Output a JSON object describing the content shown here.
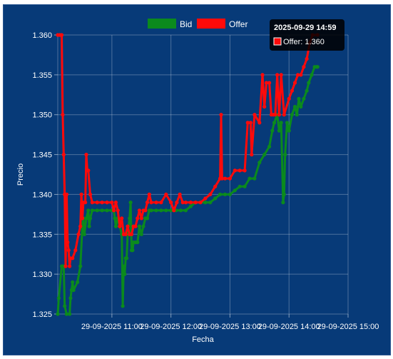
{
  "chart_data": {
    "type": "line",
    "xlabel": "Fecha",
    "ylabel": "Precio",
    "ylim": [
      1.325,
      1.36
    ],
    "yticks": [
      "1.325",
      "1.330",
      "1.335",
      "1.340",
      "1.345",
      "1.350",
      "1.355",
      "1.360"
    ],
    "xticks": [
      "29-09-2025 11:00",
      "29-09-2025 12:00",
      "29-09-2025 13:00",
      "29-09-2025 14:00",
      "29-09-2025 15:00"
    ],
    "grid": true,
    "legend_position": "top",
    "x_start": "2025-09-29 10:05",
    "x_end": "2025-09-29 15:00",
    "series": [
      {
        "name": "Bid",
        "color": "#0b8a1d",
        "points": [
          [
            "2025-09-29 10:05",
            1.325
          ],
          [
            "2025-09-29 10:06",
            1.327
          ],
          [
            "2025-09-29 10:09",
            1.331
          ],
          [
            "2025-09-29 10:11",
            1.331
          ],
          [
            "2025-09-29 10:12",
            1.326
          ],
          [
            "2025-09-29 10:14",
            1.325
          ],
          [
            "2025-09-29 10:17",
            1.325
          ],
          [
            "2025-09-29 10:18",
            1.327
          ],
          [
            "2025-09-29 10:19",
            1.328
          ],
          [
            "2025-09-29 10:20",
            1.329
          ],
          [
            "2025-09-29 10:21",
            1.328
          ],
          [
            "2025-09-29 10:25",
            1.329
          ],
          [
            "2025-09-29 10:28",
            1.331
          ],
          [
            "2025-09-29 10:30",
            1.336
          ],
          [
            "2025-09-29 10:31",
            1.337
          ],
          [
            "2025-09-29 10:32",
            1.335
          ],
          [
            "2025-09-29 10:34",
            1.337
          ],
          [
            "2025-09-29 10:36",
            1.338
          ],
          [
            "2025-09-29 10:37",
            1.336
          ],
          [
            "2025-09-29 10:38",
            1.337
          ],
          [
            "2025-09-29 10:40",
            1.338
          ],
          [
            "2025-09-29 10:45",
            1.338
          ],
          [
            "2025-09-29 10:50",
            1.338
          ],
          [
            "2025-09-29 10:55",
            1.338
          ],
          [
            "2025-09-29 11:00",
            1.338
          ],
          [
            "2025-09-29 11:02",
            1.338
          ],
          [
            "2025-09-29 11:03",
            1.337
          ],
          [
            "2025-09-29 11:04",
            1.336
          ],
          [
            "2025-09-29 11:06",
            1.337
          ],
          [
            "2025-09-29 11:08",
            1.336
          ],
          [
            "2025-09-29 11:10",
            1.335
          ],
          [
            "2025-09-29 11:11",
            1.326
          ],
          [
            "2025-09-29 11:12",
            1.331
          ],
          [
            "2025-09-29 11:13",
            1.33
          ],
          [
            "2025-09-29 11:14",
            1.332
          ],
          [
            "2025-09-29 11:15",
            1.332
          ],
          [
            "2025-09-29 11:16",
            1.335
          ],
          [
            "2025-09-29 11:18",
            1.337
          ],
          [
            "2025-09-29 11:19",
            1.339
          ],
          [
            "2025-09-29 11:20",
            1.333
          ],
          [
            "2025-09-29 11:21",
            1.333
          ],
          [
            "2025-09-29 11:22",
            1.334
          ],
          [
            "2025-09-29 11:24",
            1.334
          ],
          [
            "2025-09-29 11:26",
            1.334
          ],
          [
            "2025-09-29 11:28",
            1.336
          ],
          [
            "2025-09-29 11:30",
            1.335
          ],
          [
            "2025-09-29 11:32",
            1.336
          ],
          [
            "2025-09-29 11:34",
            1.337
          ],
          [
            "2025-09-29 11:36",
            1.337
          ],
          [
            "2025-09-29 11:38",
            1.338
          ],
          [
            "2025-09-29 11:40",
            1.338
          ],
          [
            "2025-09-29 11:45",
            1.338
          ],
          [
            "2025-09-29 11:50",
            1.338
          ],
          [
            "2025-09-29 11:55",
            1.338
          ],
          [
            "2025-09-29 12:00",
            1.338
          ],
          [
            "2025-09-29 12:05",
            1.338
          ],
          [
            "2025-09-29 12:10",
            1.338
          ],
          [
            "2025-09-29 12:15",
            1.338
          ],
          [
            "2025-09-29 12:20",
            1.3385
          ],
          [
            "2025-09-29 12:25",
            1.339
          ],
          [
            "2025-09-29 12:30",
            1.339
          ],
          [
            "2025-09-29 12:35",
            1.339
          ],
          [
            "2025-09-29 12:40",
            1.339
          ],
          [
            "2025-09-29 12:45",
            1.3395
          ],
          [
            "2025-09-29 12:50",
            1.34
          ],
          [
            "2025-09-29 12:55",
            1.34
          ],
          [
            "2025-09-29 13:00",
            1.34
          ],
          [
            "2025-09-29 13:05",
            1.3405
          ],
          [
            "2025-09-29 13:10",
            1.341
          ],
          [
            "2025-09-29 13:15",
            1.341
          ],
          [
            "2025-09-29 13:20",
            1.342
          ],
          [
            "2025-09-29 13:25",
            1.342
          ],
          [
            "2025-09-29 13:30",
            1.344
          ],
          [
            "2025-09-29 13:35",
            1.345
          ],
          [
            "2025-09-29 13:40",
            1.346
          ],
          [
            "2025-09-29 13:43",
            1.348
          ],
          [
            "2025-09-29 13:45",
            1.349
          ],
          [
            "2025-09-29 13:48",
            1.35
          ],
          [
            "2025-09-29 13:50",
            1.348
          ],
          [
            "2025-09-29 13:52",
            1.349
          ],
          [
            "2025-09-29 13:54",
            1.339
          ],
          [
            "2025-09-29 13:55",
            1.34
          ],
          [
            "2025-09-29 13:56",
            1.345
          ],
          [
            "2025-09-29 13:58",
            1.349
          ],
          [
            "2025-09-29 14:00",
            1.348
          ],
          [
            "2025-09-29 14:03",
            1.35
          ],
          [
            "2025-09-29 14:06",
            1.351
          ],
          [
            "2025-09-29 14:08",
            1.35
          ],
          [
            "2025-09-29 14:10",
            1.352
          ],
          [
            "2025-09-29 14:12",
            1.351
          ],
          [
            "2025-09-29 14:15",
            1.352
          ],
          [
            "2025-09-29 14:18",
            1.353
          ],
          [
            "2025-09-29 14:20",
            1.354
          ],
          [
            "2025-09-29 14:23",
            1.355
          ],
          [
            "2025-09-29 14:26",
            1.356
          ],
          [
            "2025-09-29 14:28",
            1.356
          ],
          [
            "2025-09-29 14:29",
            1.356
          ]
        ]
      },
      {
        "name": "Offer",
        "color": "#ff0a0a",
        "points": [
          [
            "2025-09-29 10:05",
            1.36
          ],
          [
            "2025-09-29 10:07",
            1.36
          ],
          [
            "2025-09-29 10:09",
            1.36
          ],
          [
            "2025-09-29 10:10",
            1.35
          ],
          [
            "2025-09-29 10:11",
            1.345
          ],
          [
            "2025-09-29 10:12",
            1.34
          ],
          [
            "2025-09-29 10:13",
            1.331
          ],
          [
            "2025-09-29 10:14",
            1.34
          ],
          [
            "2025-09-29 10:15",
            1.334
          ],
          [
            "2025-09-29 10:16",
            1.333
          ],
          [
            "2025-09-29 10:17",
            1.331
          ],
          [
            "2025-09-29 10:18",
            1.332
          ],
          [
            "2025-09-29 10:20",
            1.332
          ],
          [
            "2025-09-29 10:23",
            1.333
          ],
          [
            "2025-09-29 10:26",
            1.335
          ],
          [
            "2025-09-29 10:28",
            1.336
          ],
          [
            "2025-09-29 10:29",
            1.34
          ],
          [
            "2025-09-29 10:30",
            1.337
          ],
          [
            "2025-09-29 10:31",
            1.339
          ],
          [
            "2025-09-29 10:33",
            1.339
          ],
          [
            "2025-09-29 10:34",
            1.345
          ],
          [
            "2025-09-29 10:35",
            1.343
          ],
          [
            "2025-09-29 10:36",
            1.343
          ],
          [
            "2025-09-29 10:38",
            1.34
          ],
          [
            "2025-09-29 10:40",
            1.339
          ],
          [
            "2025-09-29 10:45",
            1.339
          ],
          [
            "2025-09-29 10:50",
            1.339
          ],
          [
            "2025-09-29 10:55",
            1.339
          ],
          [
            "2025-09-29 11:00",
            1.339
          ],
          [
            "2025-09-29 11:02",
            1.338
          ],
          [
            "2025-09-29 11:04",
            1.339
          ],
          [
            "2025-09-29 11:06",
            1.338
          ],
          [
            "2025-09-29 11:08",
            1.336
          ],
          [
            "2025-09-29 11:10",
            1.337
          ],
          [
            "2025-09-29 11:12",
            1.335
          ],
          [
            "2025-09-29 11:14",
            1.335
          ],
          [
            "2025-09-29 11:16",
            1.336
          ],
          [
            "2025-09-29 11:18",
            1.335
          ],
          [
            "2025-09-29 11:20",
            1.335
          ],
          [
            "2025-09-29 11:22",
            1.336
          ],
          [
            "2025-09-29 11:24",
            1.336
          ],
          [
            "2025-09-29 11:26",
            1.337
          ],
          [
            "2025-09-29 11:28",
            1.338
          ],
          [
            "2025-09-29 11:30",
            1.337
          ],
          [
            "2025-09-29 11:32",
            1.338
          ],
          [
            "2025-09-29 11:34",
            1.338
          ],
          [
            "2025-09-29 11:36",
            1.339
          ],
          [
            "2025-09-29 11:38",
            1.34
          ],
          [
            "2025-09-29 11:40",
            1.339
          ],
          [
            "2025-09-29 11:45",
            1.339
          ],
          [
            "2025-09-29 11:50",
            1.339
          ],
          [
            "2025-09-29 11:55",
            1.34
          ],
          [
            "2025-09-29 12:00",
            1.339
          ],
          [
            "2025-09-29 12:03",
            1.338
          ],
          [
            "2025-09-29 12:06",
            1.339
          ],
          [
            "2025-09-29 12:09",
            1.34
          ],
          [
            "2025-09-29 12:12",
            1.339
          ],
          [
            "2025-09-29 12:15",
            1.339
          ],
          [
            "2025-09-29 12:20",
            1.339
          ],
          [
            "2025-09-29 12:25",
            1.339
          ],
          [
            "2025-09-29 12:30",
            1.339
          ],
          [
            "2025-09-29 12:35",
            1.3395
          ],
          [
            "2025-09-29 12:40",
            1.34
          ],
          [
            "2025-09-29 12:45",
            1.341
          ],
          [
            "2025-09-29 12:50",
            1.342
          ],
          [
            "2025-09-29 12:51",
            1.35
          ],
          [
            "2025-09-29 12:52",
            1.342
          ],
          [
            "2025-09-29 12:55",
            1.342
          ],
          [
            "2025-09-29 13:00",
            1.342
          ],
          [
            "2025-09-29 13:05",
            1.343
          ],
          [
            "2025-09-29 13:10",
            1.343
          ],
          [
            "2025-09-29 13:15",
            1.343
          ],
          [
            "2025-09-29 13:18",
            1.349
          ],
          [
            "2025-09-29 13:21",
            1.349
          ],
          [
            "2025-09-29 13:22",
            1.345
          ],
          [
            "2025-09-29 13:25",
            1.35
          ],
          [
            "2025-09-29 13:30",
            1.349
          ],
          [
            "2025-09-29 13:33",
            1.355
          ],
          [
            "2025-09-29 13:35",
            1.351
          ],
          [
            "2025-09-29 13:37",
            1.354
          ],
          [
            "2025-09-29 13:40",
            1.354
          ],
          [
            "2025-09-29 13:42",
            1.35
          ],
          [
            "2025-09-29 13:44",
            1.35
          ],
          [
            "2025-09-29 13:46",
            1.35
          ],
          [
            "2025-09-29 13:48",
            1.355
          ],
          [
            "2025-09-29 13:50",
            1.35
          ],
          [
            "2025-09-29 13:52",
            1.355
          ],
          [
            "2025-09-29 13:55",
            1.35
          ],
          [
            "2025-09-29 14:00",
            1.352
          ],
          [
            "2025-09-29 14:03",
            1.353
          ],
          [
            "2025-09-29 14:06",
            1.354
          ],
          [
            "2025-09-29 14:09",
            1.355
          ],
          [
            "2025-09-29 14:12",
            1.355
          ],
          [
            "2025-09-29 14:15",
            1.356
          ],
          [
            "2025-09-29 14:18",
            1.357
          ],
          [
            "2025-09-29 14:21",
            1.359
          ],
          [
            "2025-09-29 14:24",
            1.36
          ],
          [
            "2025-09-29 14:29",
            1.36
          ]
        ]
      }
    ]
  },
  "tooltip": {
    "title": "2025-09-29 14:59",
    "series": "Offer",
    "label": "Offer: 1.360",
    "value": 1.36,
    "color": "#ff0a0a"
  }
}
